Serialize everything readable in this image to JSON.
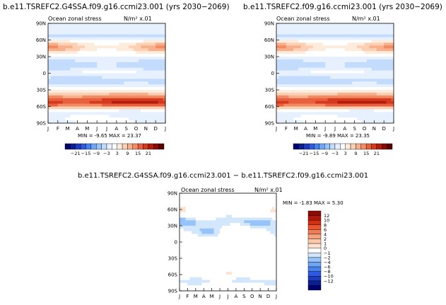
{
  "colors": {
    "seq": [
      "#00006e",
      "#0a1e96",
      "#1e3cbe",
      "#2d5ae1",
      "#4682f0",
      "#6ea5f5",
      "#96c3fa",
      "#c3dcfd",
      "#e6f0ff",
      "#ffffff",
      "#fdebdc",
      "#fbd0b4",
      "#f7b08c",
      "#f28a64",
      "#e8613e",
      "#d63a1e",
      "#b41d0c",
      "#8c0a04",
      "#5a0000"
    ],
    "diff": [
      "#00006e",
      "#0a1e96",
      "#1e3cbe",
      "#2d5ae1",
      "#4682f0",
      "#6ea5f5",
      "#96c3fa",
      "#d2e6fc",
      "#ffffff",
      "#fde2cf",
      "#fbc7a8",
      "#f7a37e",
      "#f27c55",
      "#e8552f",
      "#d2300f",
      "#b0160a",
      "#8c0a04"
    ]
  },
  "chart_data": [
    {
      "type": "heatmap",
      "title": "b.e11.TSREFC2.G4SSA.f09.g16.ccmi23.001 (yrs 2030−2069)",
      "subtitle": "Ocean zonal stress",
      "units": "N/m² x.01",
      "y_ticks": [
        "90N",
        "60N",
        "30N",
        "0",
        "30S",
        "60S",
        "90S"
      ],
      "x_ticks": [
        "J",
        "F",
        "M",
        "A",
        "M",
        "J",
        "J",
        "A",
        "S",
        "O",
        "N",
        "D",
        "J"
      ],
      "stats": "MIN = -9.65 MAX = 23.37",
      "min": -9.65,
      "max": 23.37,
      "colorbar_labels": [
        "−21",
        "−15",
        "−9",
        "−3",
        "3",
        "9",
        "15",
        "21"
      ]
    },
    {
      "type": "heatmap",
      "title": "b.e11.TSREFC2.f09.g16.ccmi23.001 (yrs 2030−2069)",
      "subtitle": "Ocean zonal stress",
      "units": "N/m² x.01",
      "y_ticks": [
        "90N",
        "60N",
        "30N",
        "0",
        "30S",
        "60S",
        "90S"
      ],
      "x_ticks": [
        "J",
        "F",
        "M",
        "A",
        "M",
        "J",
        "J",
        "A",
        "S",
        "O",
        "N",
        "D",
        "J"
      ],
      "stats": "MIN = -9.89 MAX = 23.35",
      "min": -9.89,
      "max": 23.35,
      "colorbar_labels": [
        "−21",
        "−15",
        "−9",
        "−3",
        "3",
        "9",
        "15",
        "21"
      ]
    },
    {
      "type": "heatmap",
      "title": "b.e11.TSREFC2.G4SSA.f09.g16.ccmi23.001 − b.e11.TSREFC2.f09.g16.ccmi23.001",
      "subtitle": "Ocean zonal stress",
      "units": "N/m² x.01",
      "y_ticks": [
        "90N",
        "60N",
        "30N",
        "0",
        "30S",
        "60S",
        "90S"
      ],
      "x_ticks": [
        "J",
        "F",
        "M",
        "A",
        "M",
        "J",
        "J",
        "A",
        "S",
        "O",
        "N",
        "D",
        "J"
      ],
      "stats": "MIN = -1.83 MAX = 5.30",
      "min": -1.83,
      "max": 5.3,
      "colorbar_labels": [
        "12",
        "10",
        "8",
        "6",
        "4",
        "2",
        "1",
        "0",
        "−1",
        "−2",
        "−4",
        "−6",
        "−8",
        "−10",
        "−12"
      ]
    }
  ]
}
